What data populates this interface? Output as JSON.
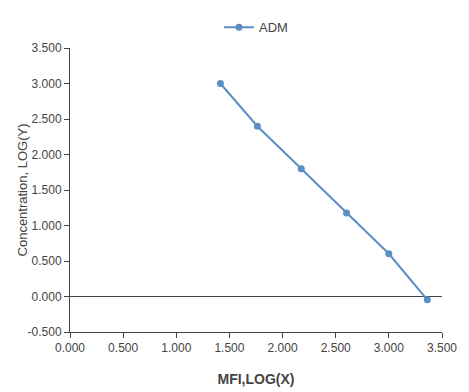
{
  "chart_data": {
    "type": "line",
    "x": [
      1.415,
      1.763,
      2.176,
      2.602,
      3.0,
      3.362
    ],
    "series": [
      {
        "name": "ADM",
        "color": "#5b8ec5",
        "marker": "circle",
        "values": [
          3.0,
          2.398,
          1.799,
          1.176,
          0.602,
          -0.046
        ]
      }
    ],
    "x_label": "MFI,LOG(X)",
    "y_label": "Concentration, LOG(Y)",
    "xlim": [
      0.0,
      3.5
    ],
    "ylim": [
      -0.5,
      3.5
    ],
    "xticks": [
      {
        "value": 0.0,
        "label": "0.000"
      },
      {
        "value": 0.5,
        "label": "0.500"
      },
      {
        "value": 1.0,
        "label": "1.000"
      },
      {
        "value": 1.5,
        "label": "1.500"
      },
      {
        "value": 2.0,
        "label": "2.000"
      },
      {
        "value": 2.5,
        "label": "2.500"
      },
      {
        "value": 3.0,
        "label": "3.000"
      },
      {
        "value": 3.5,
        "label": "3.500"
      }
    ],
    "yticks": [
      {
        "value": -0.5,
        "label": "-0.500"
      },
      {
        "value": 0.0,
        "label": "0.000"
      },
      {
        "value": 0.5,
        "label": "0.500"
      },
      {
        "value": 1.0,
        "label": "1.000"
      },
      {
        "value": 1.5,
        "label": "1.500"
      },
      {
        "value": 2.0,
        "label": "2.000"
      },
      {
        "value": 2.5,
        "label": "2.500"
      },
      {
        "value": 3.0,
        "label": "3.000"
      },
      {
        "value": 3.5,
        "label": "3.500"
      }
    ],
    "grid": false,
    "legend": "upper center"
  }
}
